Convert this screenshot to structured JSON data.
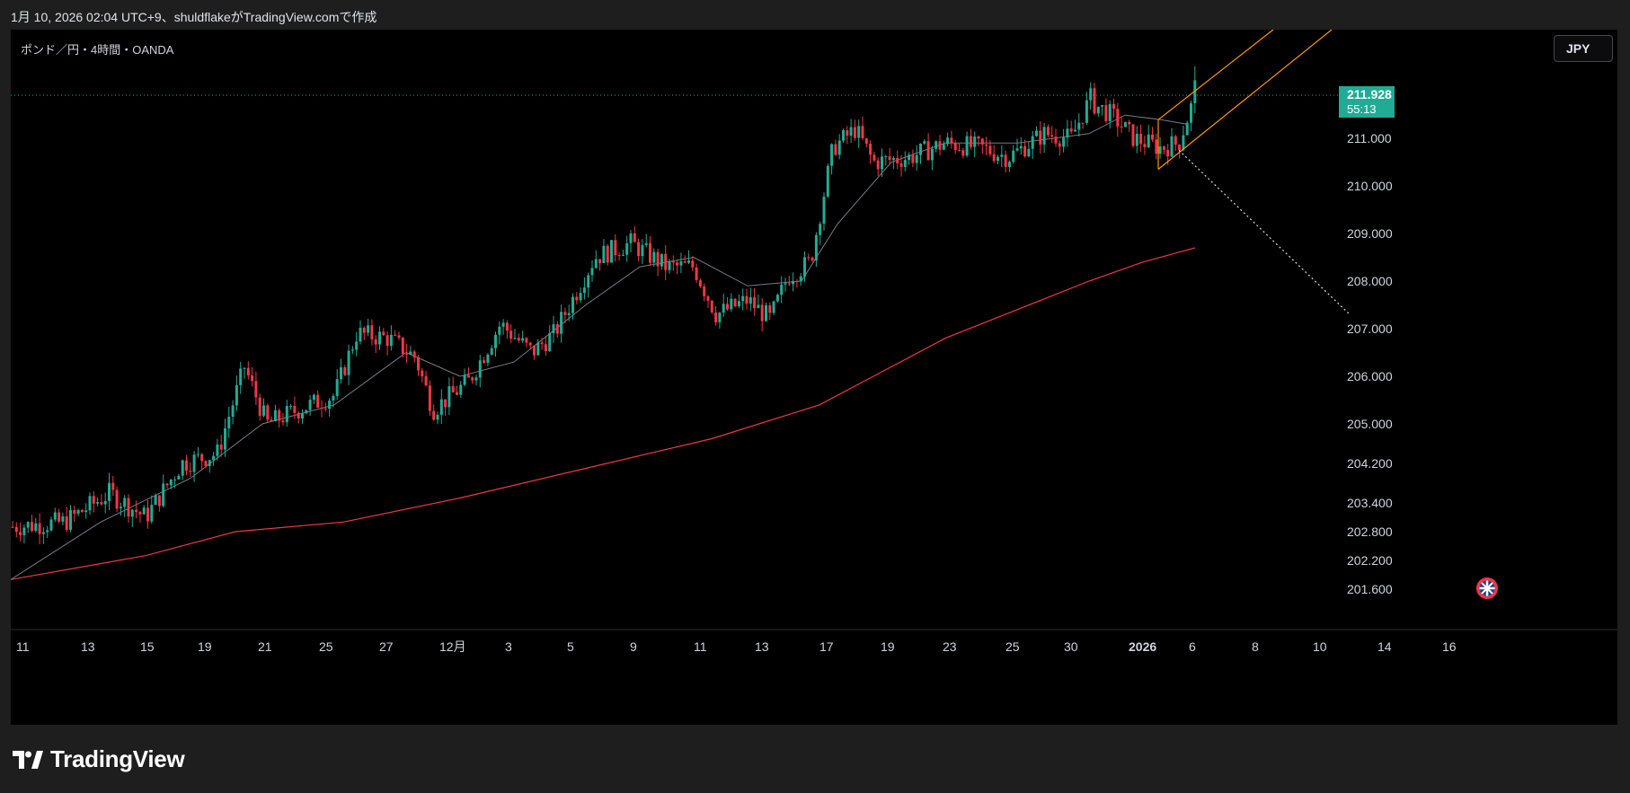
{
  "caption": "1月 10, 2026 02:04 UTC+9、shuldflakeがTradingView.comで作成",
  "symbol": "ポンド／円・4時間・OANDA",
  "currency_button": "JPY",
  "brand": "TradingView",
  "colors": {
    "up": "#22ab94",
    "down": "#f23645",
    "ma_short": "#787b86",
    "ma_long": "#f23645",
    "channel": "#ff9800",
    "projection": "#d9d9d9",
    "last_price_bg": "#22ab94"
  },
  "last_price": {
    "value": "211.928",
    "countdown": "55:13"
  },
  "chart_data": {
    "type": "candlestick",
    "ylim": [
      201.6,
      212.5
    ],
    "price_ticks": [
      "211.000",
      "210.000",
      "209.000",
      "208.000",
      "207.000",
      "206.000",
      "205.000",
      "204.200",
      "203.400",
      "202.800",
      "202.200",
      "201.600"
    ],
    "time_ticks": [
      "11",
      "13",
      "15",
      "19",
      "21",
      "25",
      "27",
      "12月",
      "3",
      "5",
      "9",
      "11",
      "13",
      "17",
      "19",
      "23",
      "25",
      "30",
      "2026",
      "6",
      "8",
      "10",
      "14",
      "16"
    ],
    "close_path": [
      [
        0,
        202.9
      ],
      [
        60,
        203.0
      ],
      [
        110,
        203.6
      ],
      [
        150,
        203.1
      ],
      [
        190,
        204.2
      ],
      [
        230,
        204.4
      ],
      [
        260,
        206.2
      ],
      [
        285,
        205.0
      ],
      [
        320,
        205.3
      ],
      [
        360,
        205.6
      ],
      [
        385,
        206.9
      ],
      [
        420,
        206.8
      ],
      [
        450,
        206.4
      ],
      [
        470,
        205.3
      ],
      [
        510,
        205.9
      ],
      [
        545,
        207.1
      ],
      [
        580,
        206.5
      ],
      [
        605,
        206.9
      ],
      [
        650,
        208.5
      ],
      [
        690,
        208.8
      ],
      [
        730,
        208.3
      ],
      [
        760,
        208.3
      ],
      [
        785,
        207.3
      ],
      [
        820,
        207.6
      ],
      [
        845,
        207.2
      ],
      [
        865,
        208.1
      ],
      [
        890,
        208.4
      ],
      [
        915,
        210.8
      ],
      [
        940,
        211.2
      ],
      [
        960,
        210.5
      ],
      [
        1000,
        210.6
      ],
      [
        1040,
        210.9
      ],
      [
        1080,
        210.8
      ],
      [
        1110,
        210.6
      ],
      [
        1150,
        211.1
      ],
      [
        1180,
        211.0
      ],
      [
        1200,
        211.8
      ],
      [
        1225,
        211.5
      ],
      [
        1250,
        211.0
      ],
      [
        1280,
        210.8
      ],
      [
        1300,
        210.9
      ],
      [
        1318,
        211.93
      ]
    ],
    "ma_short": [
      [
        0,
        201.8
      ],
      [
        100,
        203.0
      ],
      [
        200,
        203.9
      ],
      [
        280,
        205.0
      ],
      [
        360,
        205.4
      ],
      [
        440,
        206.5
      ],
      [
        500,
        206.0
      ],
      [
        560,
        206.3
      ],
      [
        640,
        207.5
      ],
      [
        700,
        208.3
      ],
      [
        760,
        208.5
      ],
      [
        820,
        207.9
      ],
      [
        880,
        208.0
      ],
      [
        920,
        209.2
      ],
      [
        980,
        210.5
      ],
      [
        1040,
        210.9
      ],
      [
        1120,
        210.9
      ],
      [
        1200,
        211.1
      ],
      [
        1240,
        211.5
      ],
      [
        1280,
        211.4
      ],
      [
        1310,
        211.3
      ]
    ],
    "ma_long": [
      [
        0,
        201.8
      ],
      [
        150,
        202.3
      ],
      [
        250,
        202.8
      ],
      [
        370,
        203.0
      ],
      [
        500,
        203.5
      ],
      [
        640,
        204.1
      ],
      [
        780,
        204.7
      ],
      [
        900,
        205.4
      ],
      [
        960,
        206.0
      ],
      [
        1040,
        206.8
      ],
      [
        1120,
        207.4
      ],
      [
        1200,
        208.0
      ],
      [
        1260,
        208.4
      ],
      [
        1318,
        208.7
      ]
    ],
    "annotations": {
      "channel_lower": [
        [
          1277,
          210.35
        ],
        [
          1470,
          212.6
        ]
      ],
      "channel_upper": [
        [
          1277,
          211.4
        ],
        [
          1405,
          212.6
        ]
      ],
      "projection": [
        [
          1300,
          210.75
        ],
        [
          1490,
          207.3
        ]
      ]
    }
  }
}
